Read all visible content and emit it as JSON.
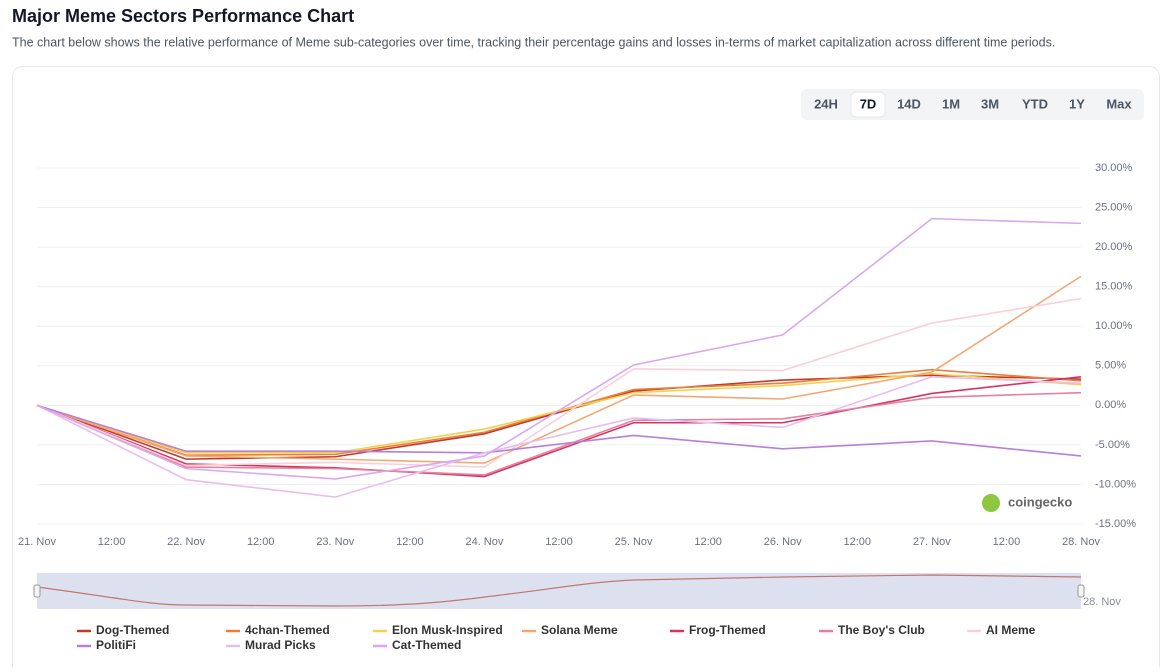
{
  "header": {
    "title": "Major Meme Sectors Performance Chart",
    "subtitle": "The chart below shows the relative performance of Meme sub-categories over time, tracking their percentage gains and losses in-terms of market capitalization across different time periods."
  },
  "range_buttons": {
    "items": [
      "24H",
      "7D",
      "14D",
      "1M",
      "3M",
      "YTD",
      "1Y",
      "Max"
    ],
    "active": "7D"
  },
  "watermark": "coingecko",
  "chart_data": {
    "type": "line",
    "categories": [
      "21. Nov",
      "22. Nov",
      "23. Nov",
      "24. Nov",
      "25. Nov",
      "26. Nov",
      "27. Nov",
      "28. Nov"
    ],
    "intermediate_labels": [
      "12:00",
      "12:00",
      "12:00",
      "12:00",
      "12:00",
      "12:00",
      "12:00"
    ],
    "ylim": [
      -15,
      30
    ],
    "yticks": [
      {
        "value": 30,
        "label": "30.00%"
      },
      {
        "value": 25,
        "label": "25.00%"
      },
      {
        "value": 20,
        "label": "20.00%"
      },
      {
        "value": 15,
        "label": "15.00%"
      },
      {
        "value": 10,
        "label": "10.00%"
      },
      {
        "value": 5,
        "label": "5.00%"
      },
      {
        "value": 0,
        "label": "0.00%"
      },
      {
        "value": -5,
        "label": "-5.00%"
      },
      {
        "value": -10,
        "label": "-10.00%"
      },
      {
        "value": -15,
        "label": "-15.00%"
      }
    ],
    "grid": true,
    "legend": "bottom",
    "series": [
      {
        "name": "Dog-Themed",
        "color": "#c0392b",
        "values": [
          0,
          -6.8,
          -6.5,
          -3.6,
          1.8,
          3.2,
          3.8,
          3.3
        ]
      },
      {
        "name": "4chan-Themed",
        "color": "#e8803a",
        "values": [
          0,
          -6.3,
          -6.2,
          -3.4,
          2.0,
          2.8,
          4.5,
          3.1
        ]
      },
      {
        "name": "Elon Musk-Inspired",
        "color": "#f5d04c",
        "values": [
          0,
          -6.0,
          -6.0,
          -3.0,
          1.6,
          2.5,
          4.0,
          2.6
        ]
      },
      {
        "name": "Solana Meme",
        "color": "#f2a875",
        "values": [
          0,
          -6.4,
          -6.8,
          -7.3,
          1.3,
          0.8,
          4.2,
          16.3
        ]
      },
      {
        "name": "Frog-Themed",
        "color": "#d6335e",
        "values": [
          0,
          -7.4,
          -7.9,
          -9.0,
          -2.2,
          -2.2,
          1.5,
          3.6
        ]
      },
      {
        "name": "The Boy's Club",
        "color": "#e77f9f",
        "values": [
          0,
          -7.8,
          -8.0,
          -8.8,
          -1.9,
          -1.7,
          1.0,
          1.6
        ]
      },
      {
        "name": "AI Meme",
        "color": "#f9d0d8",
        "values": [
          0,
          -7.6,
          -7.2,
          -7.8,
          4.6,
          4.4,
          10.4,
          13.5
        ]
      },
      {
        "name": "PolitiFi",
        "color": "#b87fd8",
        "values": [
          0,
          -5.8,
          -5.8,
          -6.0,
          -3.8,
          -5.5,
          -4.5,
          -6.4
        ]
      },
      {
        "name": "Murad Picks",
        "color": "#e7bdf0",
        "values": [
          0,
          -9.4,
          -11.6,
          -6.0,
          -1.6,
          -2.8,
          3.6,
          2.8
        ]
      },
      {
        "name": "Cat-Themed",
        "color": "#d9a8ee",
        "values": [
          0,
          -8.0,
          -9.3,
          -6.4,
          5.1,
          8.9,
          23.6,
          23.0
        ]
      }
    ]
  }
}
